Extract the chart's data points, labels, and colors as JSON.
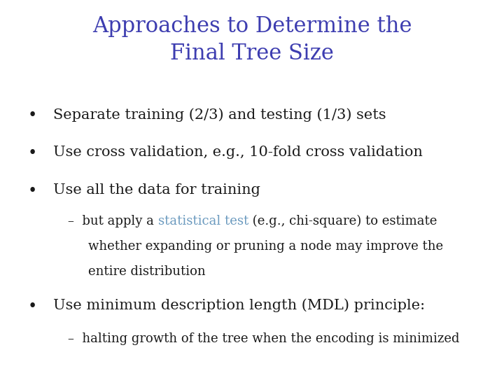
{
  "title_line1": "Approaches to Determine the",
  "title_line2": "Final Tree Size",
  "title_color": "#3d3db0",
  "background_color": "#ffffff",
  "bullet_color": "#1a1a1a",
  "stat_test_color": "#6b9abf",
  "bullet_items": [
    "Separate training (2/3) and testing (1/3) sets",
    "Use cross validation, e.g., 10-fold cross validation",
    "Use all the data for training"
  ],
  "sub1_prefix": "–  but apply a ",
  "sub1_colored": "statistical test",
  "sub1_suffix": " (e.g., chi-square) to estimate",
  "sub1_line2": "whether expanding or pruning a node may improve the",
  "sub1_line3": "entire distribution",
  "bullet_item_4": "Use minimum description length (MDL) principle:",
  "sub_item_2": "–  halting growth of the tree when the encoding is minimized",
  "font_family": "serif",
  "title_fontsize": 22,
  "body_fontsize": 15,
  "sub_fontsize": 13
}
